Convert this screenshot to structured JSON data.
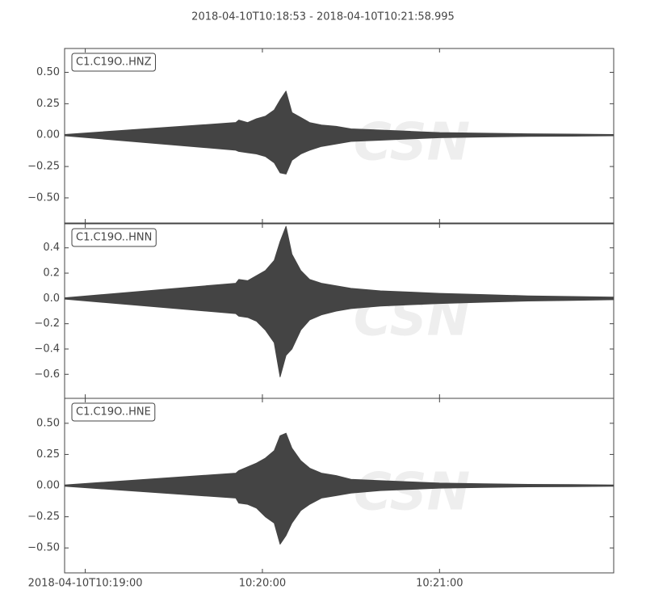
{
  "chart_data": {
    "type": "waveform",
    "title": "2018-04-10T10:18:53  -  2018-04-10T10:21:58.995",
    "color": "#444444",
    "watermark": "CSN",
    "xlim": [
      "2018-04-10T10:18:53",
      "2018-04-10T10:21:58.995"
    ],
    "xticks": [
      "2018-04-10T10:19:00",
      {
        "value": "2018-04-10T10:20:00",
        "label": "10:20:00"
      },
      {
        "value": "2018-04-10T10:21:00",
        "label": "10:21:00"
      }
    ],
    "panels": [
      {
        "label": "C1.C19O..HNZ",
        "ylim": [
          -0.7,
          0.69
        ],
        "yticks": [
          {
            "value": 0.5,
            "label": "0.50"
          },
          {
            "value": 0.25,
            "label": "0.25"
          },
          {
            "value": 0,
            "label": "0.00"
          },
          {
            "value": -0.25,
            "label": "−0.25"
          },
          {
            "value": -0.5,
            "label": "−0.50"
          }
        ],
        "x": [
          "2018-04-10T10:18:53",
          "2018-04-10T10:19:51",
          "2018-04-10T10:19:52",
          "2018-04-10T10:19:55",
          "2018-04-10T10:19:58",
          "2018-04-10T10:20:01",
          "2018-04-10T10:20:04",
          "2018-04-10T10:20:06",
          "2018-04-10T10:20:08",
          "2018-04-10T10:20:10",
          "2018-04-10T10:20:13",
          "2018-04-10T10:20:16",
          "2018-04-10T10:20:20",
          "2018-04-10T10:20:25",
          "2018-04-10T10:20:30",
          "2018-04-10T10:20:40",
          "2018-04-10T10:20:50",
          "2018-04-10T10:21:00",
          "2018-04-10T10:21:15",
          "2018-04-10T10:21:30",
          "2018-04-10T10:21:45",
          "2018-04-10T10:21:58.995"
        ],
        "upper": [
          0.005,
          0.1,
          0.12,
          0.1,
          0.13,
          0.15,
          0.2,
          0.28,
          0.35,
          0.18,
          0.14,
          0.1,
          0.08,
          0.07,
          0.05,
          0.04,
          0.03,
          0.02,
          0.015,
          0.01,
          0.008,
          0.005
        ],
        "lower": [
          -0.005,
          -0.12,
          -0.13,
          -0.14,
          -0.15,
          -0.17,
          -0.22,
          -0.3,
          -0.31,
          -0.2,
          -0.15,
          -0.12,
          -0.09,
          -0.07,
          -0.05,
          -0.04,
          -0.03,
          -0.02,
          -0.015,
          -0.01,
          -0.008,
          -0.005
        ]
      },
      {
        "label": "C1.C19O..HNN",
        "ylim": [
          -0.79,
          0.59
        ],
        "yticks": [
          0.4,
          0.2,
          {
            "value": 0,
            "label": "0.0"
          },
          {
            "value": -0.2,
            "label": "−0.2"
          },
          {
            "value": -0.4,
            "label": "−0.4"
          },
          {
            "value": -0.6,
            "label": "−0.6"
          }
        ],
        "x": [
          "2018-04-10T10:18:53",
          "2018-04-10T10:19:51",
          "2018-04-10T10:19:52",
          "2018-04-10T10:19:55",
          "2018-04-10T10:19:58",
          "2018-04-10T10:20:01",
          "2018-04-10T10:20:04",
          "2018-04-10T10:20:06",
          "2018-04-10T10:20:08",
          "2018-04-10T10:20:10",
          "2018-04-10T10:20:13",
          "2018-04-10T10:20:16",
          "2018-04-10T10:20:20",
          "2018-04-10T10:20:25",
          "2018-04-10T10:20:30",
          "2018-04-10T10:20:40",
          "2018-04-10T10:20:50",
          "2018-04-10T10:21:00",
          "2018-04-10T10:21:15",
          "2018-04-10T10:21:30",
          "2018-04-10T10:21:45",
          "2018-04-10T10:21:58.995"
        ],
        "upper": [
          0.005,
          0.12,
          0.15,
          0.14,
          0.18,
          0.22,
          0.3,
          0.45,
          0.57,
          0.35,
          0.22,
          0.15,
          0.12,
          0.1,
          0.08,
          0.06,
          0.05,
          0.04,
          0.03,
          0.02,
          0.015,
          0.01
        ],
        "lower": [
          -0.005,
          -0.12,
          -0.14,
          -0.15,
          -0.18,
          -0.25,
          -0.35,
          -0.62,
          -0.45,
          -0.4,
          -0.25,
          -0.17,
          -0.13,
          -0.1,
          -0.08,
          -0.06,
          -0.05,
          -0.04,
          -0.03,
          -0.02,
          -0.015,
          -0.01
        ]
      },
      {
        "label": "C1.C19O..HNE",
        "ylim": [
          -0.7,
          0.7
        ],
        "yticks": [
          {
            "value": 0.5,
            "label": "0.50"
          },
          {
            "value": 0.25,
            "label": "0.25"
          },
          {
            "value": 0,
            "label": "0.00"
          },
          {
            "value": -0.25,
            "label": "−0.25"
          },
          {
            "value": -0.5,
            "label": "−0.50"
          }
        ],
        "x": [
          "2018-04-10T10:18:53",
          "2018-04-10T10:19:51",
          "2018-04-10T10:19:52",
          "2018-04-10T10:19:55",
          "2018-04-10T10:19:58",
          "2018-04-10T10:20:01",
          "2018-04-10T10:20:04",
          "2018-04-10T10:20:06",
          "2018-04-10T10:20:08",
          "2018-04-10T10:20:10",
          "2018-04-10T10:20:13",
          "2018-04-10T10:20:16",
          "2018-04-10T10:20:20",
          "2018-04-10T10:20:25",
          "2018-04-10T10:20:30",
          "2018-04-10T10:20:40",
          "2018-04-10T10:20:50",
          "2018-04-10T10:21:00",
          "2018-04-10T10:21:15",
          "2018-04-10T10:21:30",
          "2018-04-10T10:21:45",
          "2018-04-10T10:21:58.995"
        ],
        "upper": [
          0.005,
          0.1,
          0.12,
          0.15,
          0.18,
          0.22,
          0.28,
          0.4,
          0.42,
          0.3,
          0.2,
          0.14,
          0.1,
          0.08,
          0.05,
          0.04,
          0.03,
          0.02,
          0.015,
          0.01,
          0.008,
          0.005
        ],
        "lower": [
          -0.005,
          -0.1,
          -0.14,
          -0.15,
          -0.18,
          -0.25,
          -0.3,
          -0.47,
          -0.4,
          -0.3,
          -0.2,
          -0.15,
          -0.1,
          -0.08,
          -0.06,
          -0.04,
          -0.03,
          -0.02,
          -0.015,
          -0.01,
          -0.008,
          -0.005
        ]
      }
    ]
  }
}
